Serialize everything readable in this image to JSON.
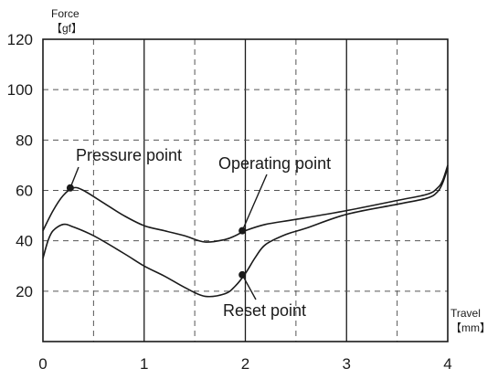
{
  "chart_data": {
    "type": "line",
    "title": "",
    "xlabel": "Travel",
    "xunit": "【mm】",
    "ylabel": "Force",
    "yunit": "【gf】",
    "xlim": [
      0,
      4
    ],
    "ylim": [
      0,
      120
    ],
    "x_ticks": [
      "0",
      "1",
      "2",
      "3",
      "4"
    ],
    "y_ticks": [
      "20",
      "40",
      "60",
      "80",
      "100",
      "120"
    ],
    "grid": true,
    "legend": "none",
    "line_color": "#1a1a1a",
    "series": [
      {
        "x": [
          0,
          0.1,
          0.2,
          0.3,
          0.4,
          0.6,
          0.8,
          1.0,
          1.2,
          1.4,
          1.6,
          1.8,
          1.9,
          2.0,
          2.2,
          2.5,
          3.0,
          3.5,
          3.8,
          3.9,
          3.95,
          4.0
        ],
        "y": [
          44,
          52,
          58,
          61,
          60,
          55,
          50,
          46,
          44,
          42,
          39.5,
          40.5,
          42,
          44,
          46.5,
          48.5,
          52,
          56,
          58.5,
          61,
          64,
          70
        ]
      },
      {
        "x": [
          0,
          0.05,
          0.1,
          0.2,
          0.3,
          0.5,
          0.8,
          1.0,
          1.2,
          1.4,
          1.6,
          1.8,
          1.9,
          2.0,
          2.1,
          2.2,
          2.4,
          2.6,
          3.0,
          3.5,
          3.8,
          3.9,
          3.95,
          4.0
        ],
        "y": [
          33,
          40,
          44,
          46.5,
          45.5,
          42,
          35,
          30,
          26,
          21.5,
          18,
          19,
          22,
          27,
          33.5,
          38.5,
          42.5,
          45,
          50.5,
          54.5,
          57,
          59.5,
          63,
          69
        ]
      }
    ],
    "annotations": [
      {
        "label": "Pressure point",
        "x": 0.27,
        "y": 61
      },
      {
        "label": "Operating point",
        "x": 1.97,
        "y": 44
      },
      {
        "label": "Reset point",
        "x": 1.97,
        "y": 26.5
      }
    ]
  }
}
